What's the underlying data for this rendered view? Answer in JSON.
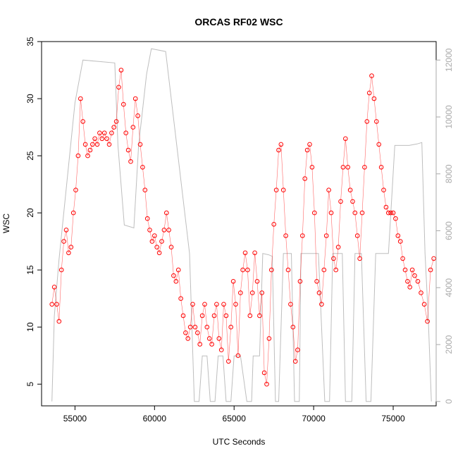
{
  "chart_data": {
    "type": "scatter",
    "title": "ORCAS RF02 WSC",
    "xlabel": "UTC Seconds",
    "ylabel": "WSC",
    "xlim": [
      52900,
      77700
    ],
    "ylim": [
      3.1,
      35.0
    ],
    "y2lim": [
      -155,
      12650
    ],
    "x_ticks": [
      55000,
      60000,
      65000,
      70000,
      75000
    ],
    "x_tick_labels": [
      "55000",
      "60000",
      "65000",
      "70000",
      "75000"
    ],
    "y_ticks": [
      5,
      10,
      15,
      20,
      25,
      30,
      35
    ],
    "y_tick_labels": [
      "5",
      "10",
      "15",
      "20",
      "25",
      "30",
      "35"
    ],
    "y2_ticks": [
      0,
      2000,
      4000,
      6000,
      8000,
      10000,
      12000
    ],
    "y2_tick_labels": [
      "0",
      "2000",
      "4000",
      "6000",
      "8000",
      "10000",
      "12000"
    ],
    "grid": false,
    "colors": {
      "wsc": "#ff0000",
      "altitude": "#bebebe",
      "axis": "#000000",
      "axis_right": "#aaaaaa"
    },
    "series": [
      {
        "marker": "open-circle",
        "color": "#ff0000",
        "axis": "left",
        "x": [
          53550,
          53700,
          53850,
          54000,
          54150,
          54300,
          54450,
          54600,
          54750,
          54900,
          55050,
          55200,
          55350,
          55500,
          55650,
          55800,
          55950,
          56100,
          56250,
          56400,
          56550,
          56700,
          56850,
          57000,
          57150,
          57300,
          57450,
          57600,
          57750,
          57900,
          58050,
          58200,
          58350,
          58500,
          58650,
          58800,
          58950,
          59100,
          59250,
          59400,
          59550,
          59700,
          59850,
          60000,
          60150,
          60300,
          60450,
          60600,
          60750,
          60900,
          61050,
          61200,
          61350,
          61500,
          61650,
          61800,
          61950,
          62100,
          62250,
          62400,
          62550,
          62700,
          62850,
          63000,
          63150,
          63300,
          63450,
          63600,
          63750,
          63900,
          64050,
          64200,
          64350,
          64500,
          64650,
          64800,
          64950,
          65100,
          65250,
          65400,
          65550,
          65700,
          65850,
          66000,
          66150,
          66300,
          66450,
          66600,
          66750,
          66900,
          67050,
          67200,
          67350,
          67500,
          67650,
          67800,
          67950,
          68100,
          68250,
          68400,
          68550,
          68700,
          68850,
          69000,
          69150,
          69300,
          69450,
          69600,
          69750,
          69900,
          70050,
          70200,
          70350,
          70500,
          70650,
          70800,
          70950,
          71100,
          71250,
          71400,
          71550,
          71700,
          71850,
          72000,
          72150,
          72300,
          72450,
          72600,
          72750,
          72900,
          73050,
          73200,
          73350,
          73500,
          73650,
          73800,
          73950,
          74100,
          74250,
          74400,
          74550,
          74700,
          74850,
          75000,
          75150,
          75300,
          75450,
          75600,
          75750,
          75900,
          76050,
          76200,
          76350,
          76550,
          76750,
          76950,
          77150,
          77350,
          77550
        ],
        "y": [
          12.0,
          13.5,
          12.0,
          10.5,
          15.0,
          17.5,
          18.5,
          16.5,
          17.0,
          20.0,
          22.0,
          25.0,
          30.0,
          28.0,
          26.0,
          25.0,
          25.5,
          26.0,
          26.5,
          26.0,
          27.0,
          26.5,
          27.0,
          26.5,
          26.0,
          27.0,
          27.5,
          28.0,
          31.0,
          32.5,
          29.5,
          27.0,
          25.5,
          24.5,
          27.5,
          30.0,
          28.5,
          26.0,
          24.0,
          22.0,
          19.5,
          18.5,
          17.5,
          18.0,
          17.0,
          16.5,
          17.5,
          18.5,
          20.0,
          18.5,
          17.0,
          14.5,
          14.0,
          15.0,
          12.5,
          11.0,
          9.5,
          9.0,
          10.0,
          12.0,
          10.0,
          9.5,
          8.5,
          11.0,
          12.0,
          10.0,
          9.0,
          8.5,
          11.0,
          12.0,
          9.0,
          8.0,
          12.0,
          11.0,
          7.0,
          10.0,
          14.0,
          12.0,
          7.5,
          13.0,
          15.0,
          16.5,
          15.0,
          11.0,
          13.0,
          16.5,
          14.0,
          11.0,
          13.0,
          6.0,
          5.0,
          9.0,
          15.0,
          19.0,
          22.0,
          25.5,
          26.0,
          22.0,
          18.0,
          15.0,
          12.0,
          10.0,
          7.0,
          8.0,
          14.0,
          18.0,
          23.0,
          25.5,
          26.0,
          24.0,
          20.0,
          14.0,
          13.0,
          12.0,
          15.0,
          18.0,
          22.0,
          20.0,
          16.0,
          15.0,
          17.0,
          21.0,
          24.0,
          26.5,
          24.0,
          22.0,
          21.0,
          20.0,
          18.0,
          16.0,
          20.0,
          24.0,
          28.0,
          30.5,
          32.0,
          30.0,
          28.0,
          26.0,
          24.0,
          22.0,
          20.5,
          20.0,
          20.0,
          20.0,
          19.5,
          18.0,
          17.5,
          16.0,
          15.0,
          14.0,
          13.5,
          15.0,
          14.5,
          14.0,
          13.0,
          12.0,
          10.5,
          15.0,
          16.0
        ]
      },
      {
        "type": "line",
        "color": "#bebebe",
        "axis": "right",
        "x": [
          53550,
          53700,
          54000,
          55000,
          55500,
          56500,
          57500,
          57700,
          58100,
          58400,
          58700,
          59000,
          59500,
          59800,
          60700,
          62200,
          62500,
          62800,
          63000,
          63300,
          63500,
          63800,
          64000,
          64300,
          64500,
          64800,
          65000,
          65400,
          65800,
          66100,
          66200,
          66600,
          66800,
          67200,
          67400,
          67600,
          67800,
          68100,
          68300,
          68600,
          68800,
          69100,
          69200,
          69500,
          69700,
          70300,
          70700,
          71000,
          71200,
          71800,
          72000,
          72400,
          72600,
          73000,
          73300,
          73600,
          73900,
          74300,
          74700,
          75100,
          75500,
          76000,
          76500,
          76800,
          77000,
          77200,
          77400
        ],
        "y": [
          0,
          3000,
          5000,
          10500,
          12000,
          11950,
          11900,
          9000,
          6200,
          6150,
          6100,
          9000,
          11500,
          12400,
          12300,
          5200,
          0,
          0,
          1600,
          1600,
          0,
          0,
          1600,
          1600,
          0,
          0,
          1600,
          1600,
          0,
          0,
          1600,
          1600,
          5200,
          5150,
          5100,
          0,
          0,
          5200,
          5200,
          5200,
          0,
          0,
          5200,
          5200,
          5200,
          5200,
          0,
          0,
          5200,
          5200,
          0,
          0,
          5200,
          5200,
          0,
          0,
          5200,
          5200,
          5200,
          9000,
          9000,
          9000,
          9050,
          9100,
          5200,
          3000,
          0
        ]
      }
    ]
  }
}
